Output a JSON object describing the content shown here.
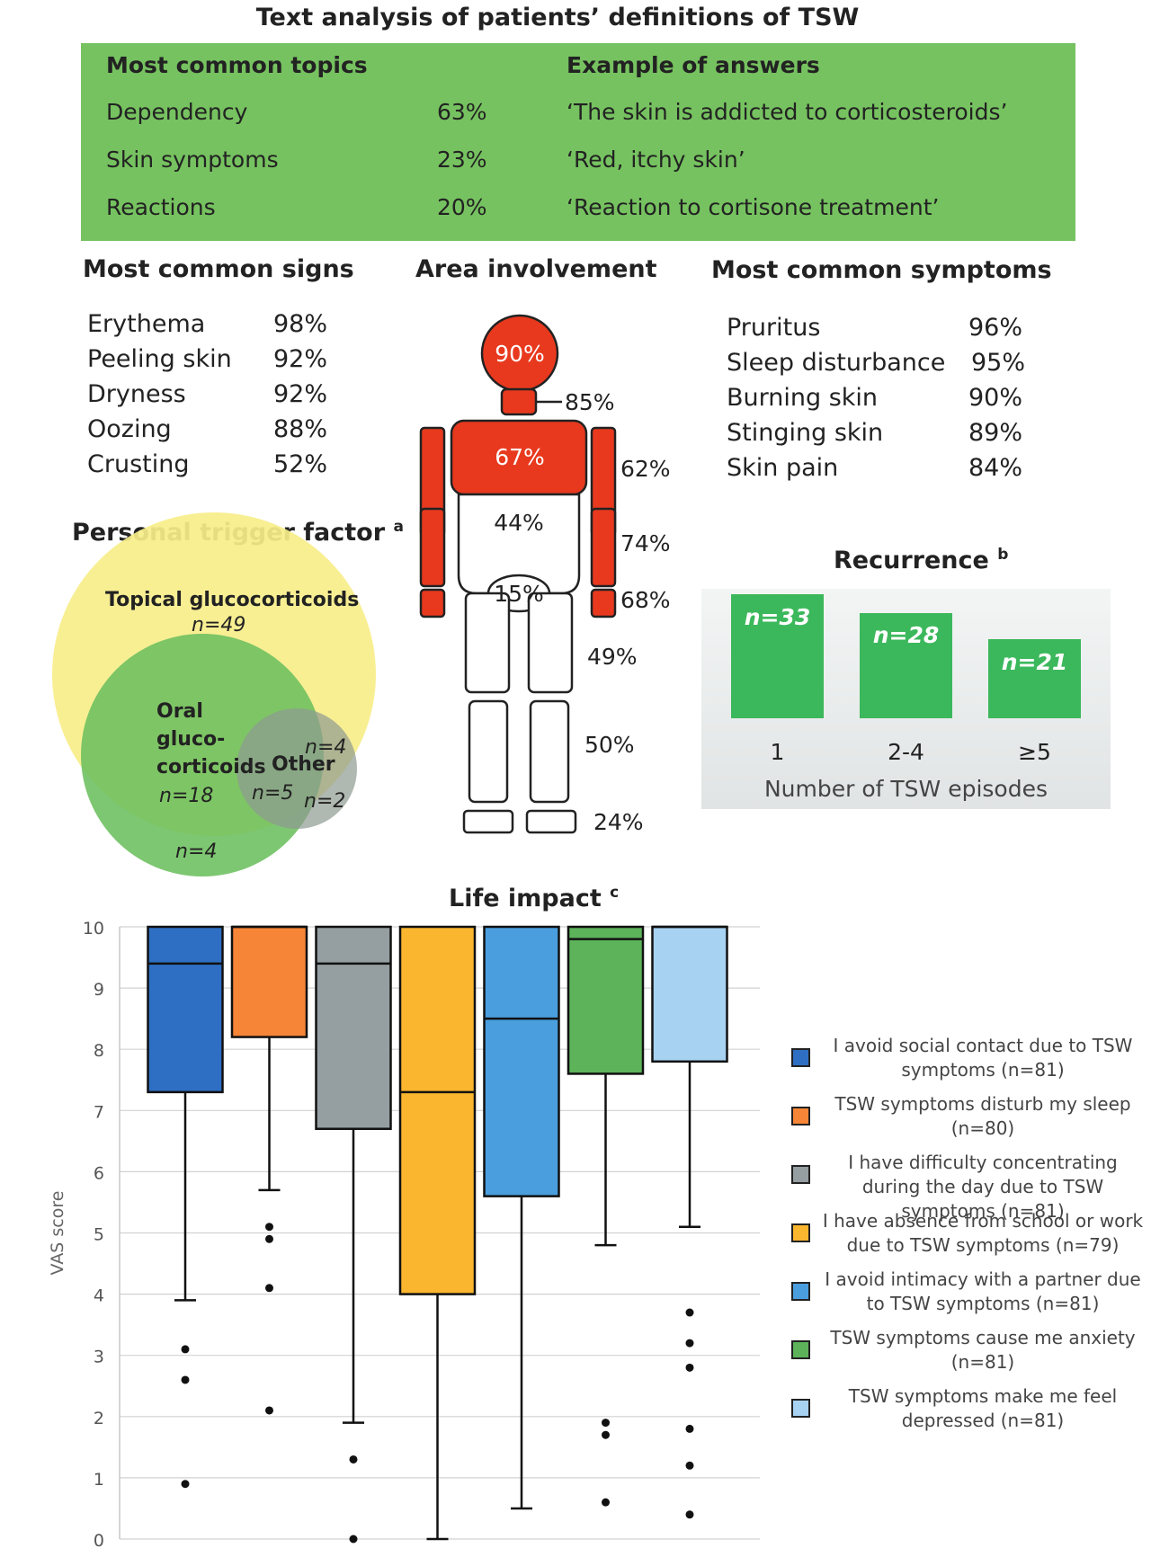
{
  "title": "Text analysis of patients’ definitions of TSW",
  "topics": {
    "header_left": "Most common topics",
    "header_right": "Example of answers",
    "rows": [
      {
        "topic": "Dependency",
        "pct": "63%",
        "example": "‘The skin is addicted to corticosteroids’"
      },
      {
        "topic": "Skin symptoms",
        "pct": "23%",
        "example": "‘Red, itchy skin’"
      },
      {
        "topic": "Reactions",
        "pct": "20%",
        "example": "‘Reaction to cortisone treatment’"
      }
    ],
    "color": "#76c260"
  },
  "signs": {
    "heading": "Most common signs",
    "items": [
      {
        "name": "Erythema",
        "pct": "98%"
      },
      {
        "name": "Peeling skin",
        "pct": "92%"
      },
      {
        "name": "Dryness",
        "pct": "92%"
      },
      {
        "name": "Oozing",
        "pct": "88%"
      },
      {
        "name": "Crusting",
        "pct": "52%"
      }
    ]
  },
  "area": {
    "heading": "Area involvement",
    "labels": {
      "head": "90%",
      "neck": "85%",
      "chest": "67%",
      "upper_arm": "62%",
      "abdomen": "44%",
      "forearm": "74%",
      "groin": "15%",
      "hand": "68%",
      "thigh": "49%",
      "lower_leg": "50%",
      "foot": "24%"
    },
    "colors": {
      "involved": "#e8391e",
      "outline": "#222222"
    }
  },
  "symptoms": {
    "heading": "Most common symptoms",
    "items": [
      {
        "name": "Pruritus",
        "pct": "96%"
      },
      {
        "name": "Sleep disturbance",
        "pct": "95%"
      },
      {
        "name": "Burning skin",
        "pct": "90%"
      },
      {
        "name": "Stinging skin",
        "pct": "89%"
      },
      {
        "name": "Skin pain",
        "pct": "84%"
      }
    ]
  },
  "trigger": {
    "heading": "Personal trigger factor",
    "sup": "a",
    "topical_label": "Topical glucocorticoids",
    "topical_n": "n=49",
    "oral_label": "Oral\ngluco-\ncorticoids",
    "oral_n": "n=18",
    "other_label": "Other",
    "other_n": "n=2",
    "top_overlap_n": "n=4",
    "mid_overlap_n": "n=5",
    "bottom_n": "n=4",
    "colors": {
      "topical": "#f7ee8a",
      "oral": "#6cbf5e",
      "other": "#8e9a92"
    }
  },
  "recurrence": {
    "heading": "Recurrence",
    "sup": "b",
    "bars": [
      {
        "category": "1",
        "label": "n=33"
      },
      {
        "category": "2-4",
        "label": "n=28"
      },
      {
        "category": "≥5",
        "label": "n=21"
      }
    ],
    "xlabel": "Number of TSW episodes",
    "color": "#3cb85c"
  },
  "chart_data": {
    "type": "box",
    "title": "Life impact",
    "title_sup": "c",
    "ylabel": "VAS score",
    "ylim": [
      0,
      10
    ],
    "yticks": [
      "0",
      "1",
      "2",
      "3",
      "4",
      "5",
      "6",
      "7",
      "8",
      "9",
      "10"
    ],
    "grid": true,
    "legend_position": "right",
    "series": [
      {
        "name": "I avoid social contact due to TSW symptoms (n=81)",
        "color": "#2e6fc4",
        "whisker_low": 3.9,
        "q1": 7.3,
        "median": 9.4,
        "q3": 10,
        "whisker_high": 10,
        "outliers": [
          3.1,
          2.6,
          0.9
        ]
      },
      {
        "name": "TSW symptoms disturb my sleep (n=80)",
        "color": "#f68537",
        "whisker_low": 5.7,
        "q1": 8.2,
        "median": 10,
        "q3": 10,
        "whisker_high": 10,
        "outliers": [
          5.1,
          4.9,
          4.1,
          2.1
        ]
      },
      {
        "name": "I have difficulty concentrating during the day due to TSW symptoms (n=81)",
        "color": "#959ea0",
        "whisker_low": 1.9,
        "q1": 6.7,
        "median": 9.4,
        "q3": 10,
        "whisker_high": 10,
        "outliers": [
          1.3,
          0
        ]
      },
      {
        "name": "I have absence from school or work due to TSW symptoms (n=79)",
        "color": "#fbb62f",
        "whisker_low": 0,
        "q1": 4.0,
        "median": 7.3,
        "q3": 10,
        "whisker_high": 10,
        "outliers": []
      },
      {
        "name": "I avoid intimacy with a partner due to TSW symptoms (n=81)",
        "color": "#4a9ede",
        "whisker_low": 0.5,
        "q1": 5.6,
        "median": 8.5,
        "q3": 10,
        "whisker_high": 10,
        "outliers": []
      },
      {
        "name": "TSW symptoms cause me anxiety (n=81)",
        "color": "#5cb35a",
        "whisker_low": 4.8,
        "q1": 7.6,
        "median": 9.8,
        "q3": 10,
        "whisker_high": 10,
        "outliers": [
          1.9,
          1.7,
          0.6
        ]
      },
      {
        "name": "TSW symptoms make me feel depressed (n=81)",
        "color": "#a8d2f2",
        "whisker_low": 5.1,
        "q1": 7.8,
        "median": 10,
        "q3": 10,
        "whisker_high": 10,
        "outliers": [
          3.7,
          3.2,
          2.8,
          1.8,
          1.2,
          0.4
        ]
      }
    ]
  }
}
